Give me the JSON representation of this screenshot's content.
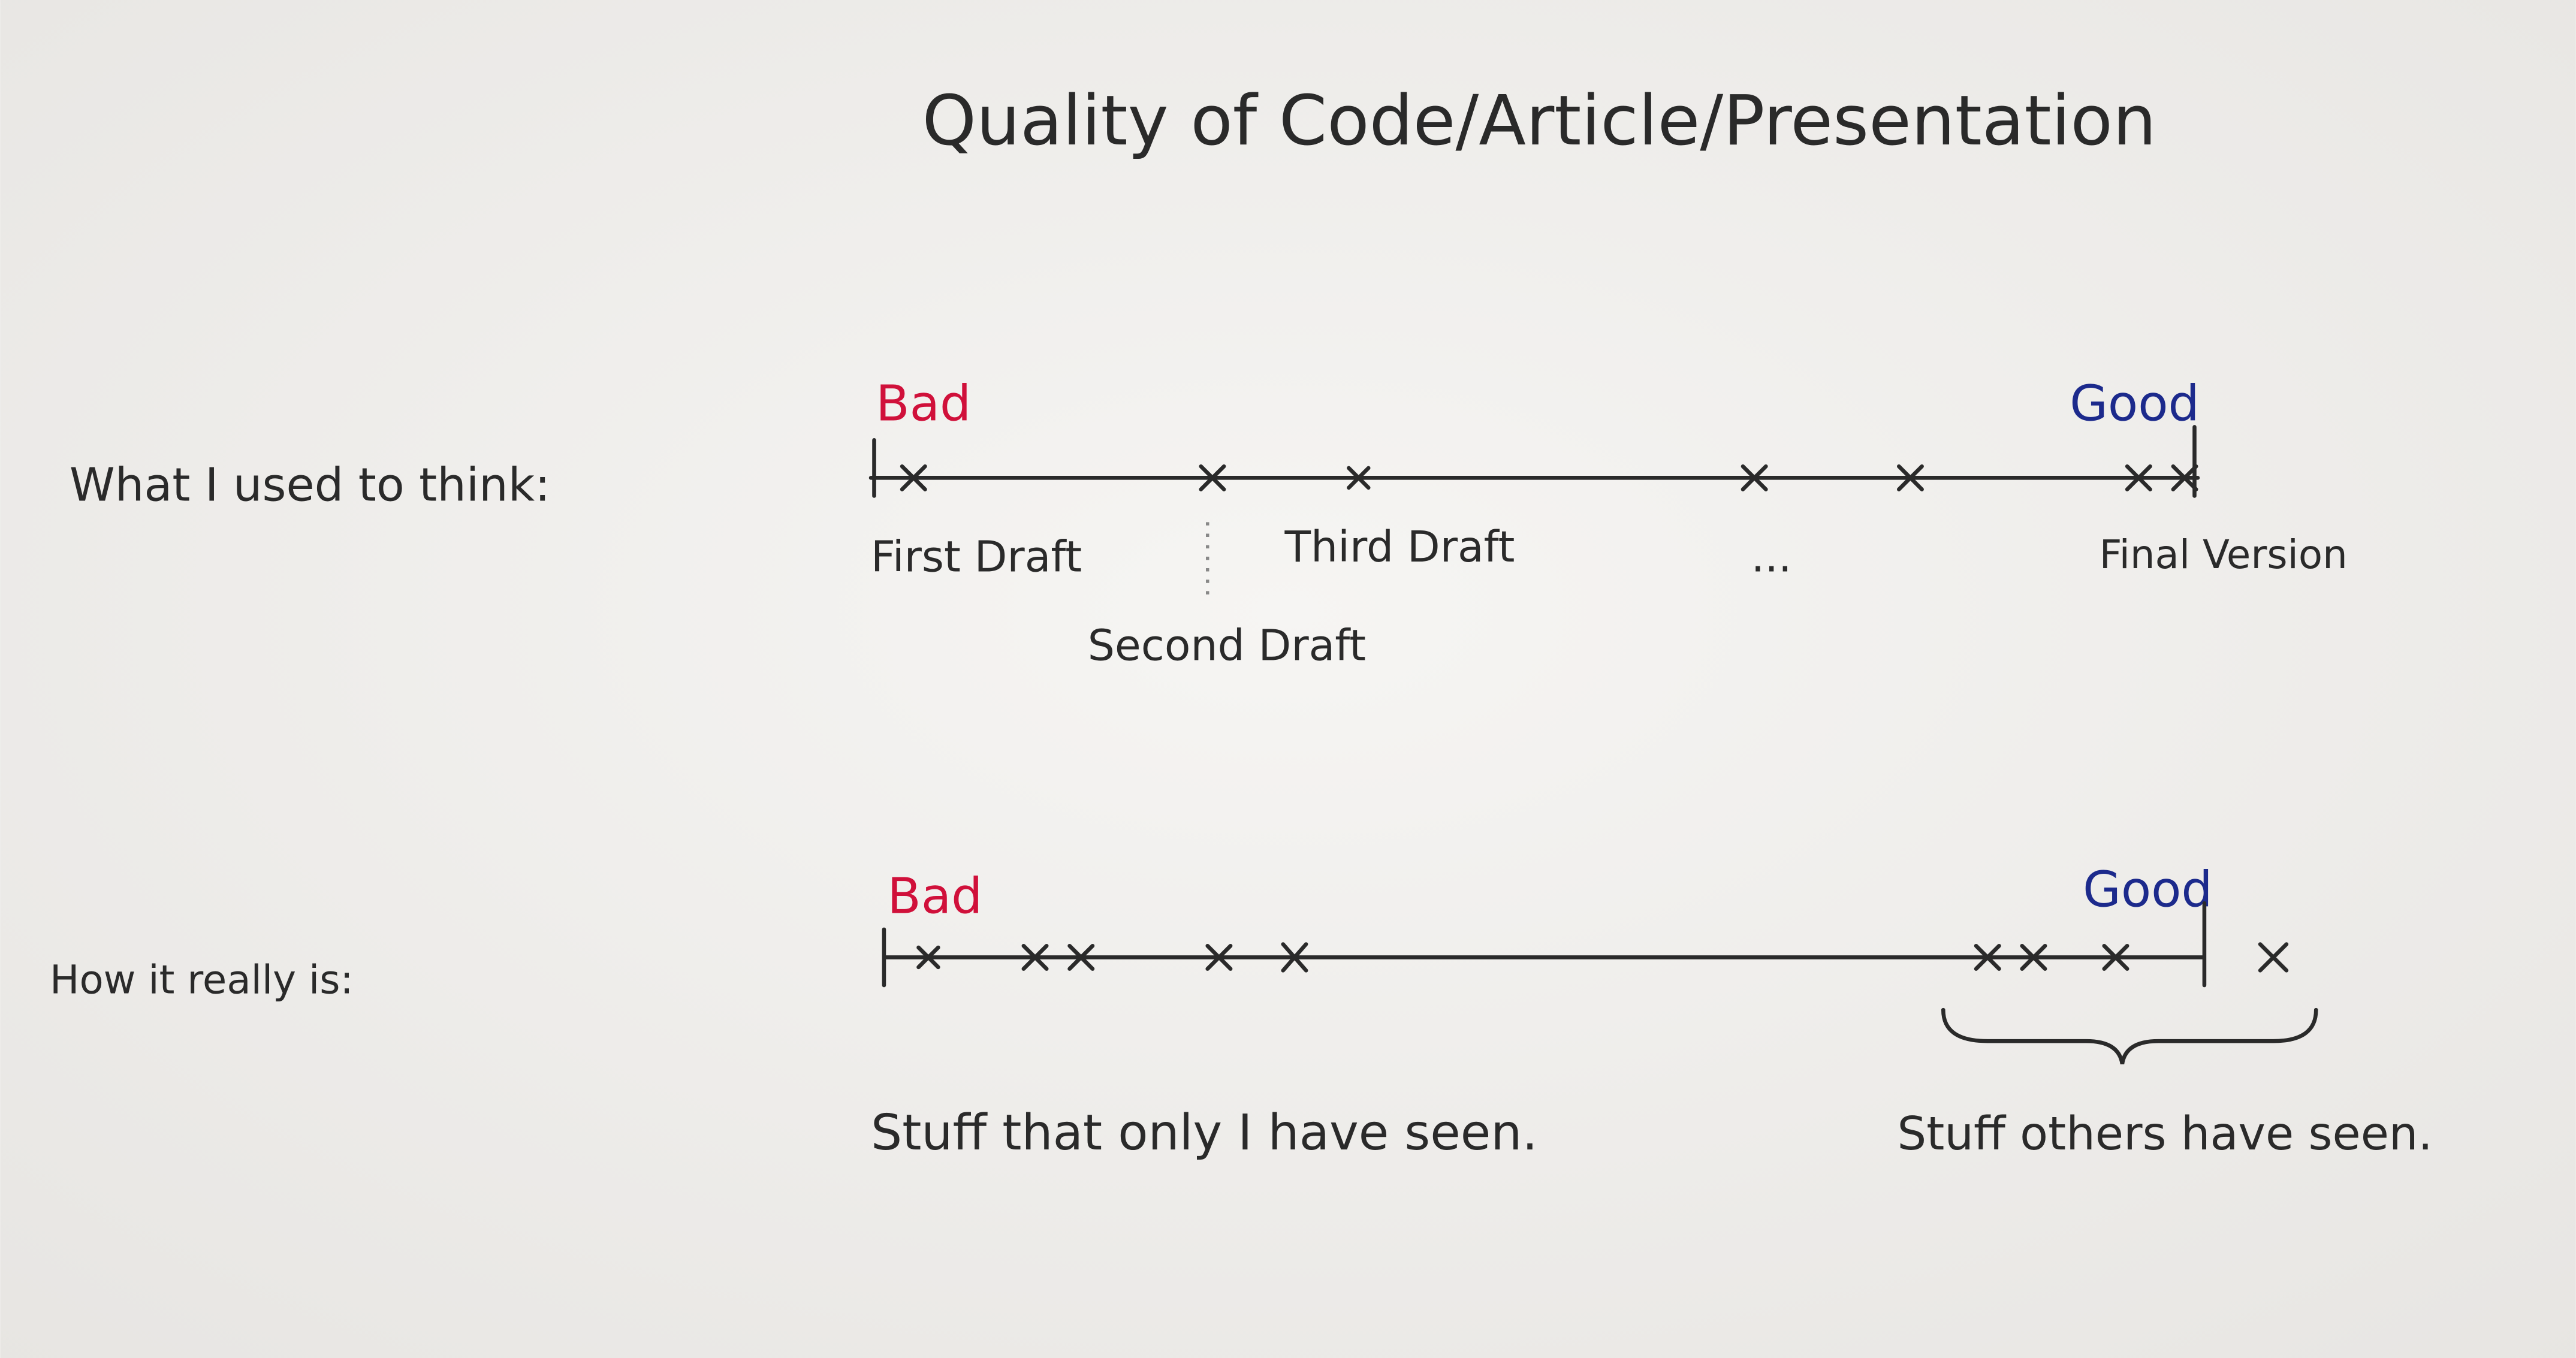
{
  "title": "Quality of Code/Article/Presentation",
  "rows": [
    {
      "label": "What I used to think:",
      "bad": "Bad",
      "good": "Good",
      "marks": [
        "First Draft",
        "Second Draft",
        "Third Draft",
        "...",
        "Final Version"
      ]
    },
    {
      "label": "How it really is:",
      "bad": "Bad",
      "good": "Good",
      "groups": [
        "Stuff that only I have seen.",
        "Stuff others have seen."
      ]
    }
  ]
}
